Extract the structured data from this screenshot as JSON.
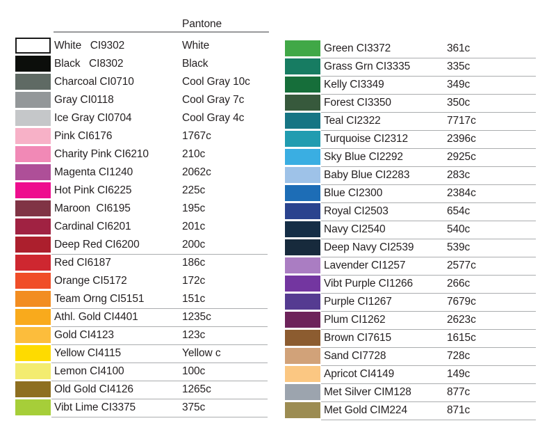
{
  "header": {
    "title": "Pantone"
  },
  "columns": [
    {
      "side": "left",
      "rows": [
        {
          "label": "White   CI9302",
          "pantone": "White",
          "hex": "#ffffff",
          "swatch_border": true,
          "underline": false
        },
        {
          "label": "Black   CI8302",
          "pantone": "Black",
          "hex": "#0c0e0b",
          "swatch_border": false,
          "underline": false
        },
        {
          "label": "Charcoal CI0710",
          "pantone": "Cool Gray 10c",
          "hex": "#5f6a64",
          "swatch_border": false,
          "underline": false
        },
        {
          "label": "Gray CI0118",
          "pantone": "Cool Gray 7c",
          "hex": "#939799",
          "swatch_border": false,
          "underline": false
        },
        {
          "label": "Ice Gray CI0704",
          "pantone": "Cool Gray 4c",
          "hex": "#c5c7c9",
          "swatch_border": false,
          "underline": false
        },
        {
          "label": "Pink CI6176",
          "pantone": "1767c",
          "hex": "#f7b1c7",
          "swatch_border": false,
          "underline": false
        },
        {
          "label": "Charity Pink CI6210",
          "pantone": "210c",
          "hex": "#f189b6",
          "swatch_border": false,
          "underline": false
        },
        {
          "label": "Magenta CI1240",
          "pantone": "2062c",
          "hex": "#ae4f98",
          "swatch_border": false,
          "underline": false
        },
        {
          "label": "Hot Pink CI6225",
          "pantone": "225c",
          "hex": "#ee0d8e",
          "swatch_border": false,
          "underline": false
        },
        {
          "label": "Maroon  CI6195",
          "pantone": "195c",
          "hex": "#803445",
          "swatch_border": false,
          "underline": false
        },
        {
          "label": "Cardinal CI6201",
          "pantone": "201c",
          "hex": "#a02242",
          "swatch_border": false,
          "underline": false
        },
        {
          "label": "Deep Red CI6200",
          "pantone": "200c",
          "hex": "#ac1f2d",
          "swatch_border": false,
          "underline": true
        },
        {
          "label": "Red CI6187",
          "pantone": "186c",
          "hex": "#ce2730",
          "swatch_border": false,
          "underline": false
        },
        {
          "label": "Orange CI5172",
          "pantone": "172c",
          "hex": "#f04d28",
          "swatch_border": false,
          "underline": false
        },
        {
          "label": "Team Orng CI5151",
          "pantone": "151c",
          "hex": "#f28d21",
          "swatch_border": false,
          "underline": true
        },
        {
          "label": "Athl. Gold CI4401",
          "pantone": "1235c",
          "hex": "#f9aa1c",
          "swatch_border": false,
          "underline": true
        },
        {
          "label": "Gold CI4123",
          "pantone": "123c",
          "hex": "#fcbd3c",
          "swatch_border": false,
          "underline": true
        },
        {
          "label": "Yellow CI4115",
          "pantone": "Yellow c",
          "hex": "#fedb00",
          "swatch_border": false,
          "underline": true
        },
        {
          "label": "Lemon CI4100",
          "pantone": "100c",
          "hex": "#f3ec70",
          "swatch_border": false,
          "underline": true
        },
        {
          "label": "Old Gold CI4126",
          "pantone": "1265c",
          "hex": "#8e6f20",
          "swatch_border": false,
          "underline": true
        },
        {
          "label": "Vibt Lime CI3375",
          "pantone": "375c",
          "hex": "#a6ce39",
          "swatch_border": false,
          "underline": true
        }
      ]
    },
    {
      "side": "right",
      "rows": [
        {
          "label": "Green CI3372",
          "pantone": "361c",
          "hex": "#41a847",
          "swatch_border": false,
          "underline": true
        },
        {
          "label": "Grass Grn CI3335",
          "pantone": "335c",
          "hex": "#177c62",
          "swatch_border": false,
          "underline": true
        },
        {
          "label": "Kelly CI3349",
          "pantone": "349c",
          "hex": "#166e3a",
          "swatch_border": false,
          "underline": true
        },
        {
          "label": "Forest CI3350",
          "pantone": "350c",
          "hex": "#37593c",
          "swatch_border": false,
          "underline": true
        },
        {
          "label": "Teal CI2322",
          "pantone": "7717c",
          "hex": "#167584",
          "swatch_border": false,
          "underline": true
        },
        {
          "label": "Turquoise CI2312",
          "pantone": "2396c",
          "hex": "#219cb0",
          "swatch_border": false,
          "underline": true
        },
        {
          "label": "Sky Blue CI2292",
          "pantone": "2925c",
          "hex": "#3aaee2",
          "swatch_border": false,
          "underline": true
        },
        {
          "label": "Baby Blue CI2283",
          "pantone": "283c",
          "hex": "#9ec2e8",
          "swatch_border": false,
          "underline": true
        },
        {
          "label": "Blue CI2300",
          "pantone": "2384c",
          "hex": "#1d6db6",
          "swatch_border": false,
          "underline": true
        },
        {
          "label": "Royal CI2503",
          "pantone": "654c",
          "hex": "#2a438e",
          "swatch_border": false,
          "underline": true
        },
        {
          "label": "Navy CI2540",
          "pantone": "540c",
          "hex": "#152e46",
          "swatch_border": false,
          "underline": true
        },
        {
          "label": "Deep Navy CI2539",
          "pantone": "539c",
          "hex": "#172a3c",
          "swatch_border": false,
          "underline": true
        },
        {
          "label": "Lavender CI1257",
          "pantone": "2577c",
          "hex": "#aa7dc2",
          "swatch_border": false,
          "underline": true
        },
        {
          "label": "Vibt Purple CI1266",
          "pantone": "266c",
          "hex": "#7336a0",
          "swatch_border": false,
          "underline": true
        },
        {
          "label": "Purple CI1267",
          "pantone": "7679c",
          "hex": "#553b91",
          "swatch_border": false,
          "underline": true
        },
        {
          "label": "Plum CI1262",
          "pantone": "2623c",
          "hex": "#6d235a",
          "swatch_border": false,
          "underline": true
        },
        {
          "label": "Brown CI7615",
          "pantone": "1615c",
          "hex": "#8c5c30",
          "swatch_border": false,
          "underline": true
        },
        {
          "label": "Sand CI7728",
          "pantone": "728c",
          "hex": "#d1a279",
          "swatch_border": false,
          "underline": true
        },
        {
          "label": "Apricot CI4149",
          "pantone": "149c",
          "hex": "#fbc782",
          "swatch_border": false,
          "underline": true
        },
        {
          "label": "Met Silver CIM128",
          "pantone": "877c",
          "hex": "#9ca4ae",
          "swatch_border": false,
          "underline": true
        },
        {
          "label": "Met Gold CIM224",
          "pantone": "871c",
          "hex": "#9c8c52",
          "swatch_border": false,
          "underline": true
        }
      ]
    }
  ]
}
